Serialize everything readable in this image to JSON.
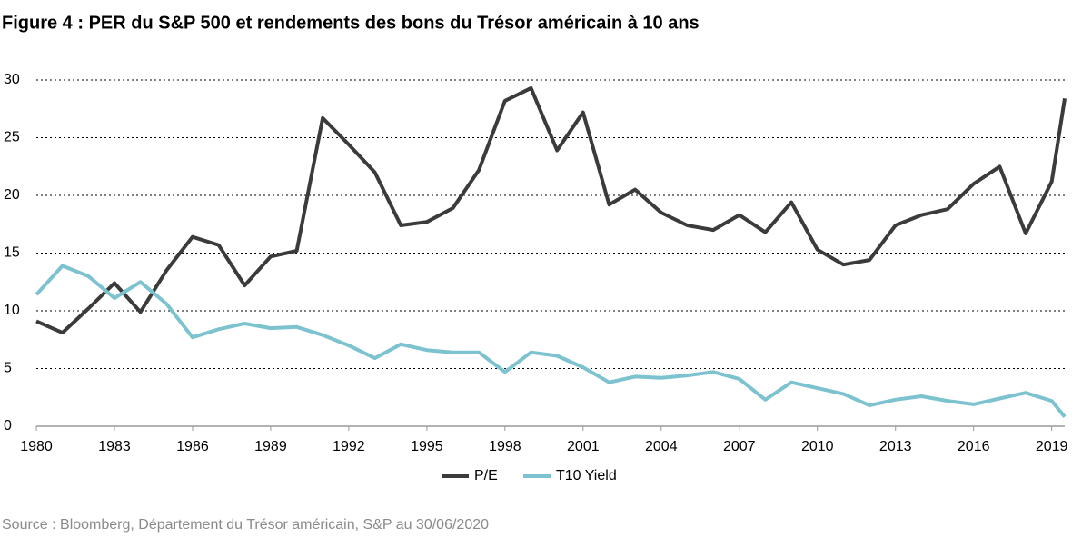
{
  "chart_data": {
    "type": "line",
    "title": "Figure 4 : PER du S&P 500 et rendements des bons du Trésor américain à 10 ans",
    "source": "Source : Bloomberg, Département du Trésor américain, S&P au 30/06/2020",
    "x": [
      1980,
      1981,
      1982,
      1983,
      1984,
      1985,
      1986,
      1987,
      1988,
      1989,
      1990,
      1991,
      1992,
      1993,
      1994,
      1995,
      1996,
      1997,
      1998,
      1999,
      2000,
      2001,
      2002,
      2003,
      2004,
      2005,
      2006,
      2007,
      2008,
      2009,
      2010,
      2011,
      2012,
      2013,
      2014,
      2015,
      2016,
      2017,
      2018,
      2019,
      2019.5
    ],
    "series": [
      {
        "name": "P/E",
        "color": "#3b3b3b",
        "values": [
          9.1,
          8.1,
          10.2,
          12.4,
          9.9,
          13.5,
          16.4,
          15.7,
          12.2,
          14.7,
          15.2,
          26.7,
          24.4,
          22.0,
          17.4,
          17.7,
          18.9,
          22.2,
          28.2,
          29.3,
          23.9,
          27.2,
          19.2,
          20.5,
          18.5,
          17.4,
          17.0,
          18.3,
          16.8,
          19.4,
          15.3,
          14.0,
          14.4,
          17.4,
          18.3,
          18.8,
          21.0,
          22.5,
          16.7,
          21.2,
          28.4
        ]
      },
      {
        "name": "T10 Yield",
        "color": "#7cc3cf",
        "values": [
          11.4,
          13.9,
          13.0,
          11.1,
          12.5,
          10.6,
          7.7,
          8.4,
          8.9,
          8.5,
          8.6,
          7.9,
          7.0,
          5.9,
          7.1,
          6.6,
          6.4,
          6.4,
          4.7,
          6.4,
          6.1,
          5.1,
          3.8,
          4.3,
          4.2,
          4.4,
          4.7,
          4.1,
          2.3,
          3.8,
          3.3,
          2.8,
          1.8,
          2.3,
          2.6,
          2.2,
          1.9,
          2.4,
          2.9,
          2.2,
          0.8
        ]
      }
    ],
    "xlim": [
      1980,
      2019.5
    ],
    "xticks": [
      1980,
      1983,
      1986,
      1989,
      1992,
      1995,
      1998,
      2001,
      2004,
      2007,
      2010,
      2013,
      2016,
      2019
    ],
    "ylim": [
      0,
      30
    ],
    "yticks": [
      0,
      5,
      10,
      15,
      20,
      25,
      30
    ],
    "grid": true,
    "legend": "bottom"
  }
}
